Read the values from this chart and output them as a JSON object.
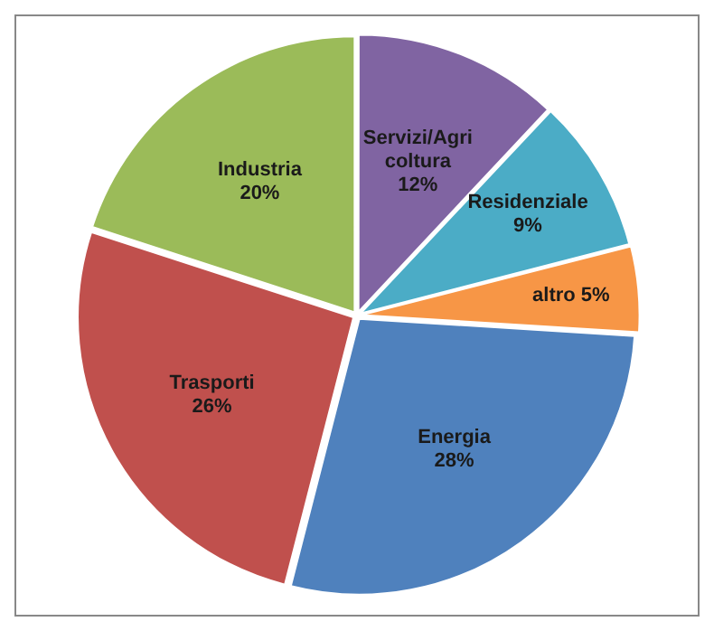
{
  "chart_data": {
    "type": "pie",
    "categories": [
      "Servizi/Agri coltura",
      "Residenziale",
      "altro",
      "Energia",
      "Trasporti",
      "Industria"
    ],
    "values": [
      12,
      9,
      5,
      28,
      26,
      20
    ],
    "value_labels": [
      "12%",
      "9%",
      "5%",
      "28%",
      "26%",
      "20%"
    ],
    "colors": [
      "#8064a2",
      "#4bacc6",
      "#f79646",
      "#4f81bd",
      "#c0504d",
      "#9bbb59"
    ],
    "legend": false
  }
}
